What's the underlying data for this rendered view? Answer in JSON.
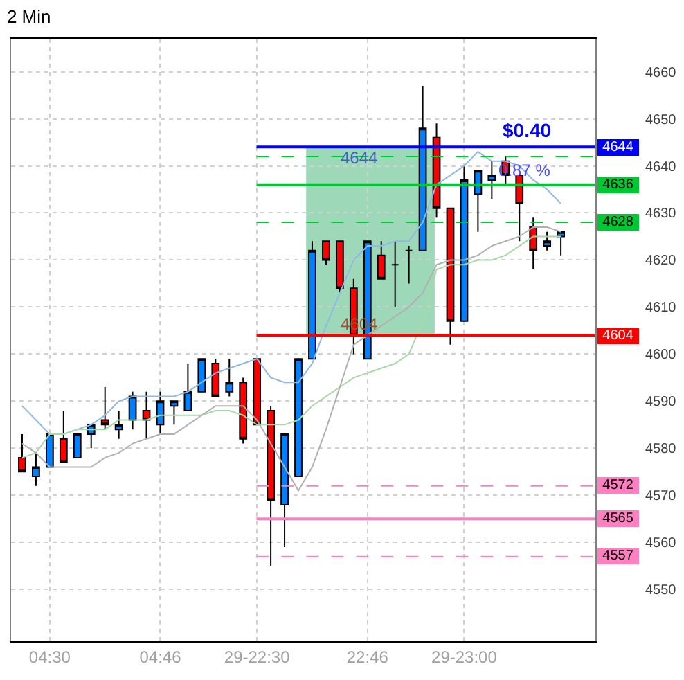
{
  "chart_data": {
    "type": "candlestick",
    "title": "2 Min",
    "categories": [
      null,
      null,
      "04:30",
      null,
      null,
      null,
      null,
      null,
      null,
      null,
      "04:46",
      null,
      null,
      null,
      null,
      null,
      null,
      "29-22:30",
      null,
      null,
      null,
      null,
      null,
      null,
      null,
      "22:46",
      null,
      null,
      null,
      null,
      null,
      null,
      "29-23:00",
      null,
      null,
      null,
      null,
      null,
      null,
      null
    ],
    "ohlc": [
      [
        4578,
        4583,
        4575,
        4575
      ],
      [
        4574,
        4579,
        4572,
        4576
      ],
      [
        4576,
        4583,
        4576,
        4583
      ],
      [
        4582,
        4588,
        4577,
        4577
      ],
      [
        4578,
        4583,
        4578,
        4583
      ],
      [
        4583,
        4585,
        4580,
        4585
      ],
      [
        4586,
        4593,
        4584,
        4585
      ],
      [
        4584,
        4588,
        4582,
        4585
      ],
      [
        4586,
        4592,
        4584,
        4591
      ],
      [
        4588,
        4592,
        4582,
        4586
      ],
      [
        4585,
        4592,
        4583,
        4590
      ],
      [
        4589,
        4590,
        4585,
        4590
      ],
      [
        4588,
        4598,
        4588,
        4592
      ],
      [
        4592,
        4599,
        4592,
        4599
      ],
      [
        4598,
        4599,
        4591,
        4591
      ],
      [
        4592,
        4599,
        4591,
        4594
      ],
      [
        4594,
        4595,
        4581,
        4582
      ],
      [
        4599,
        4599,
        4585,
        4585
      ],
      [
        4588,
        4589,
        4555,
        4569
      ],
      [
        4568,
        4583,
        4559,
        4583
      ],
      [
        4574,
        4599,
        4574,
        4599
      ],
      [
        4599,
        4624,
        4599,
        4622
      ],
      [
        4624,
        4624,
        4619,
        4620
      ],
      [
        4624,
        4624,
        4613,
        4614
      ],
      [
        4614,
        4616,
        4600,
        4604
      ],
      [
        4599,
        4624,
        4599,
        4624
      ],
      [
        4621,
        4624,
        4616,
        4616
      ],
      [
        4619,
        4624,
        4610,
        4619
      ],
      [
        4622,
        4623,
        4615,
        4622
      ],
      [
        4622,
        4657,
        4622,
        4648
      ],
      [
        4646,
        4649,
        4629,
        4631
      ],
      [
        4631,
        4631,
        4602,
        4607
      ],
      [
        4607,
        4640,
        4607,
        4637
      ],
      [
        4634,
        4639,
        4626,
        4639
      ],
      [
        4637,
        4641,
        4633,
        4638
      ],
      [
        4641,
        4642,
        4636,
        4638
      ],
      [
        4638,
        4638,
        4624,
        4632
      ],
      [
        4627,
        4629,
        4618,
        4622
      ],
      [
        4623,
        4626,
        4622,
        4624
      ],
      [
        4625,
        4626,
        4621,
        4626
      ]
    ],
    "colors": [
      "#ff0000",
      "#0080ff",
      "#0080ff",
      "#ff0000",
      "#0080ff",
      "#0080ff",
      "#ff0000",
      "#0080ff",
      "#0080ff",
      "#ff0000",
      "#0080ff",
      "#0080ff",
      "#0080ff",
      "#0080ff",
      "#ff0000",
      "#0080ff",
      "#ff0000",
      "#ff0000",
      "#ff0000",
      "#0080ff",
      "#0080ff",
      "#0080ff",
      "#ff0000",
      "#ff0000",
      "#ff0000",
      "#0080ff",
      "#ff0000",
      "#000000",
      "#000000",
      "#0080ff",
      "#ff0000",
      "#ff0000",
      "#0080ff",
      "#0080ff",
      "#0080ff",
      "#ff0000",
      "#ff0000",
      "#ff0000",
      "#0080ff",
      "#0080ff"
    ],
    "series": [
      {
        "type": "line",
        "color": "#8fb8e8",
        "values": [
          4589,
          4586,
          4583,
          4583,
          4584,
          4585,
          4587,
          4590,
          4591,
          4591,
          4591,
          4591,
          4592,
          4594,
          4596,
          4597,
          4598,
          4599,
          4595,
          4594,
          4594,
          4598,
          4606,
          4613,
          4620,
          4623,
          4623,
          4624,
          4624,
          4628,
          4636,
          4638,
          4640,
          4643,
          4641,
          4641,
          4640,
          4637,
          4635,
          4632
        ]
      },
      {
        "type": "line",
        "color": "#a8d8a8",
        "values": [
          4578,
          4579,
          4583,
          4583,
          4584,
          4584,
          4584,
          4586,
          4586,
          4586,
          4587,
          4587,
          4587,
          4587,
          4588,
          4588,
          4587,
          4585,
          4585,
          4585,
          4586,
          4589,
          4591,
          4593,
          4595,
          4596,
          4597,
          4598,
          4600,
          4607,
          4618,
          4619,
          4619,
          4620,
          4620,
          4621,
          4623,
          4625,
          4625,
          4625
        ]
      },
      {
        "type": "line",
        "color": "#b0b0b0",
        "values": [
          4581,
          4579,
          4576,
          4576,
          4576,
          4576,
          4578,
          4579,
          4581,
          4582,
          4583,
          4583,
          4585,
          4587,
          4589,
          4589,
          4589,
          4586,
          4581,
          4576,
          4571,
          4576,
          4584,
          4593,
          4602,
          4604,
          4606,
          4608,
          4610,
          4613,
          4619,
          4620,
          4620,
          4621,
          4623,
          4624,
          4625,
          4627,
          4627,
          4626
        ]
      }
    ],
    "ylim": [
      4539,
      4667
    ],
    "yticks": [
      4550,
      4560,
      4570,
      4580,
      4590,
      4600,
      4610,
      4620,
      4630,
      4640,
      4650,
      4660
    ],
    "grid": true,
    "ref_lines": [
      {
        "axis": "y",
        "value": 4644,
        "label": "4644",
        "color": "#0000ff",
        "line_style": "solid"
      },
      {
        "axis": "y",
        "value": 4642,
        "color": "#00c832",
        "line_style": "dashed"
      },
      {
        "axis": "y",
        "value": 4636,
        "label": "4636",
        "color": "#00c832",
        "line_style": "solid"
      },
      {
        "axis": "y",
        "value": 4628,
        "label": "4628",
        "color": "#00c832",
        "line_style": "dashed"
      },
      {
        "axis": "y",
        "value": 4604,
        "label": "4604",
        "color": "#ff0000",
        "line_style": "solid"
      },
      {
        "axis": "y",
        "value": 4572,
        "label": "4572",
        "color": "#ff80c0",
        "line_style": "dashed"
      },
      {
        "axis": "y",
        "value": 4565,
        "label": "4565",
        "color": "#ff80c0",
        "line_style": "solid"
      },
      {
        "axis": "y",
        "value": 4557,
        "label": "4557",
        "color": "#ff80c0",
        "line_style": "dashed"
      }
    ],
    "bands": [
      {
        "axis": "y",
        "from": 4604,
        "to": 4644,
        "color": "#3cb371"
      }
    ],
    "annotations": [
      {
        "text": "$0.40",
        "y": 4644
      },
      {
        "text": "0.87 %",
        "y": 4644
      },
      {
        "text": "4644",
        "y": 4644
      },
      {
        "text": "4604",
        "y": 4604
      }
    ]
  }
}
